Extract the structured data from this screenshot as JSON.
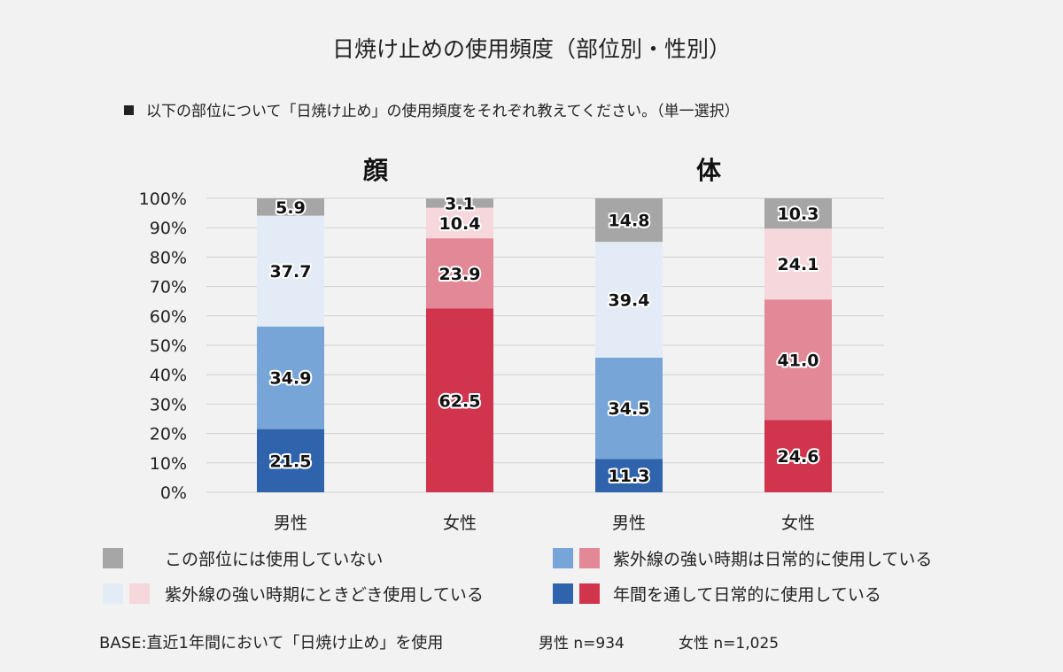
{
  "title": "日焼け止めの使用頻度（部位別・性別）",
  "question": "以下の部位について「日焼け止め」の使用頻度をそれぞれ教えてください。（単一選択）",
  "colors": {
    "male": [
      "#2f63ac",
      "#78a5d8",
      "#e3ecf6",
      "#a6a6a6"
    ],
    "female": [
      "#d0354d",
      "#e28896",
      "#f6d7dc",
      "#a6a6a6"
    ],
    "grid": "#d0d0d0",
    "background": "#f2f2f2"
  },
  "chart_data": {
    "type": "bar",
    "stacked": true,
    "groups": [
      "顔",
      "体"
    ],
    "categories": [
      "男性",
      "女性",
      "男性",
      "女性"
    ],
    "group_of_category": [
      0,
      0,
      1,
      1
    ],
    "gender_of_category": [
      "male",
      "female",
      "male",
      "female"
    ],
    "series": [
      {
        "name": "年間を通して日常的に使用している",
        "values": [
          21.5,
          62.5,
          11.3,
          24.6
        ]
      },
      {
        "name": "紫外線の強い時期は日常的に使用している",
        "values": [
          34.9,
          23.9,
          34.5,
          41.0
        ]
      },
      {
        "name": "紫外線の強い時期にときどき使用している",
        "values": [
          37.7,
          10.4,
          39.4,
          24.1
        ]
      },
      {
        "name": "この部位には使用していない",
        "values": [
          5.9,
          3.1,
          14.8,
          10.3
        ]
      }
    ],
    "hidden_labels": [
      [
        false,
        false,
        false,
        false
      ],
      [
        false,
        false,
        false,
        false
      ],
      [
        false,
        false,
        false,
        false
      ],
      [
        false,
        false,
        false,
        false
      ]
    ],
    "y_ticks": [
      "0%",
      "10%",
      "20%",
      "30%",
      "40%",
      "50%",
      "60%",
      "70%",
      "80%",
      "90%",
      "100%"
    ],
    "ylim": [
      0,
      100
    ]
  },
  "legend": {
    "not_used": "この部位には使用していない",
    "strong_daily": "紫外線の強い時期は日常的に使用している",
    "strong_sometimes": "紫外線の強い時期にときどき使用している",
    "year_round": "年間を通して日常的に使用している"
  },
  "footer": {
    "base": "BASE:直近1年間において「日焼け止め」を使用",
    "male_n": "男性 n=934",
    "female_n": "女性 n=1,025"
  }
}
